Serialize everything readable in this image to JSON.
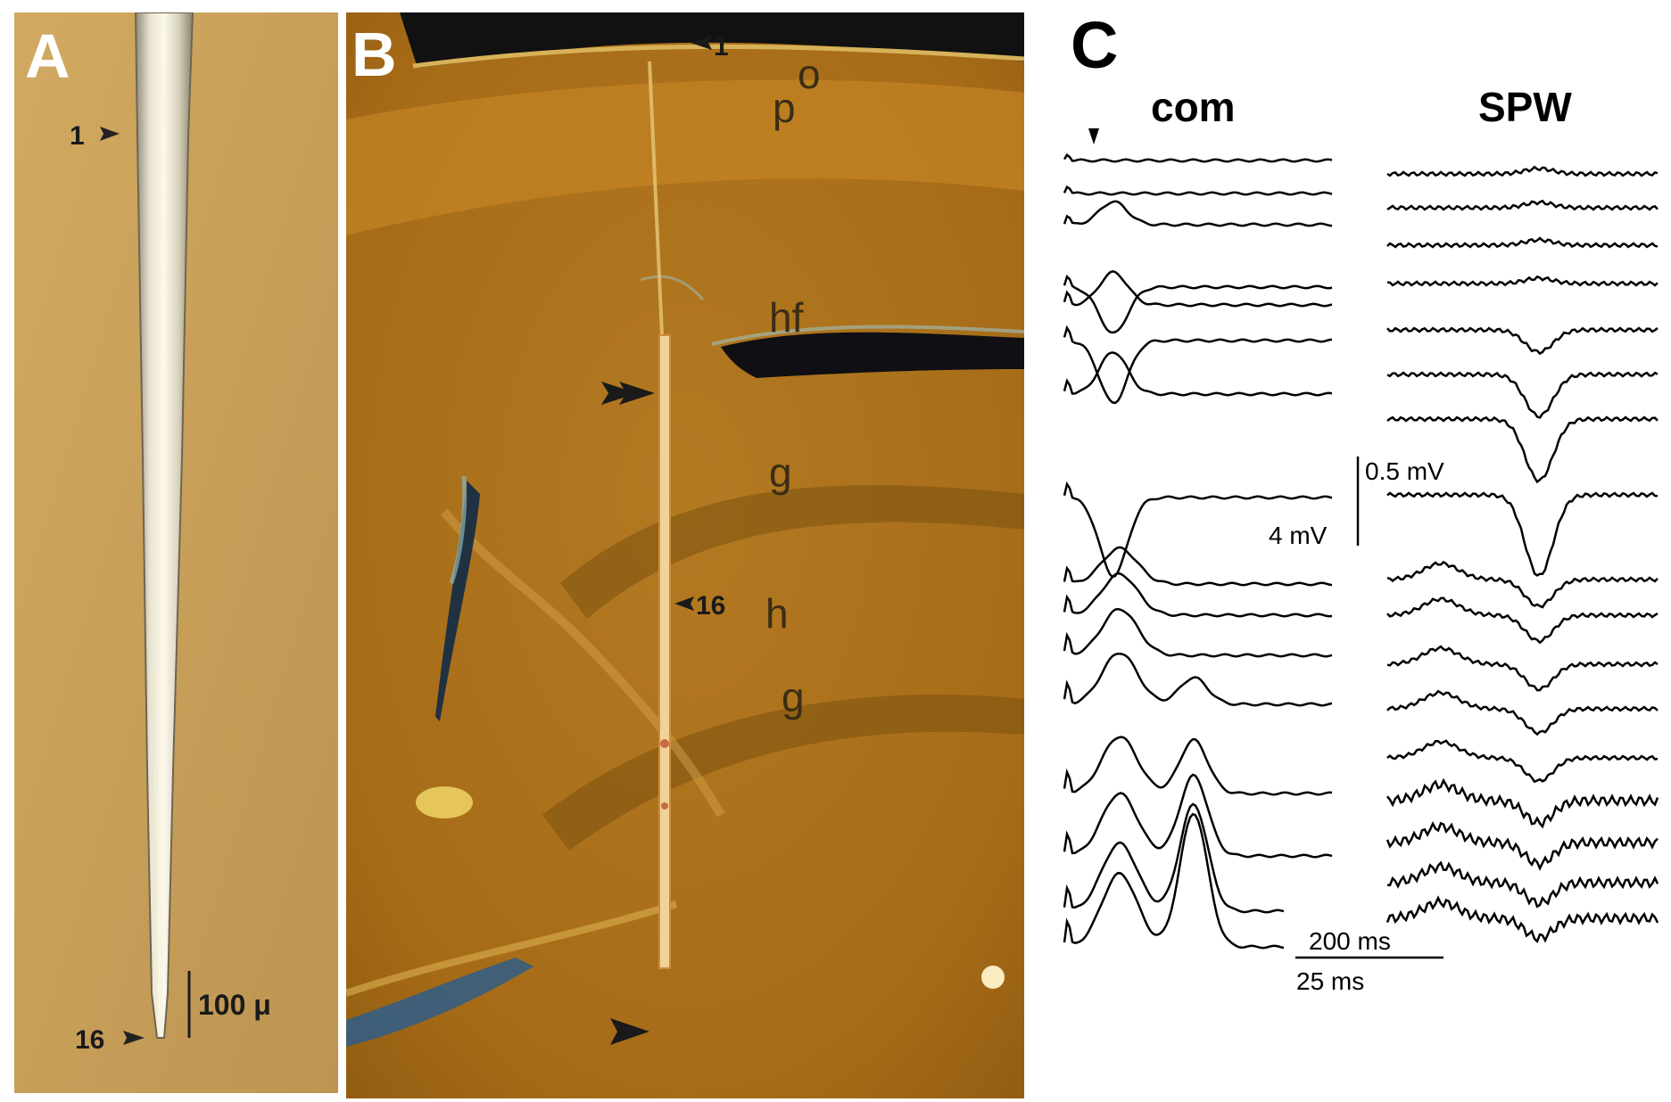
{
  "panel_a": {
    "label": "A",
    "marker_top": "1",
    "marker_bottom": "16",
    "scale_label": "100 μ"
  },
  "panel_b": {
    "label": "B",
    "marker_top": "1",
    "marker_mid": "16",
    "layers": [
      "o",
      "p",
      "hf",
      "g",
      "h",
      "g"
    ]
  },
  "panel_c": {
    "label": "C",
    "col_left": "com",
    "col_right": "SPW",
    "scale_mv_left": "4 mV",
    "scale_mv_right": "0.5 mV",
    "scale_ms_right": "200 ms",
    "scale_ms_left": "25 ms"
  },
  "colors": {
    "tissue": "#b2761d",
    "electrode": "#e7dcb8",
    "trace": "#000000"
  }
}
